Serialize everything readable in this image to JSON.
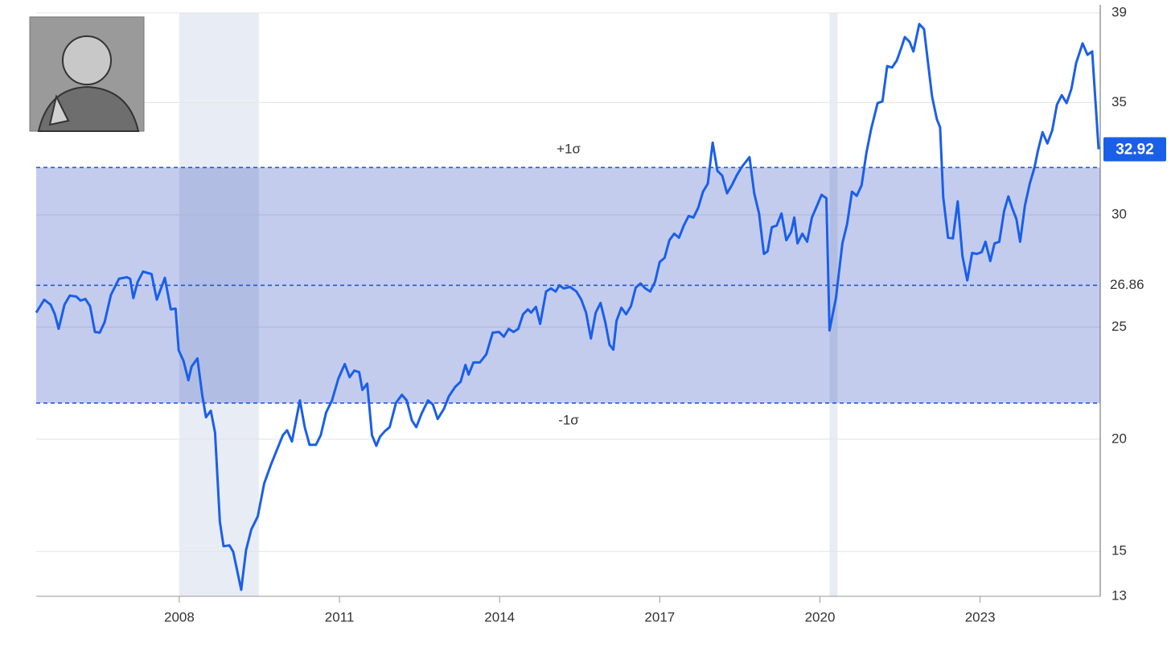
{
  "chart_data": {
    "type": "line",
    "x": [
      2005.32,
      2005.47,
      2005.59,
      2005.67,
      2005.74,
      2005.85,
      2005.95,
      2006.07,
      2006.15,
      2006.24,
      2006.33,
      2006.42,
      2006.51,
      2006.6,
      2006.72,
      2006.87,
      2007.02,
      2007.08,
      2007.14,
      2007.22,
      2007.32,
      2007.48,
      2007.58,
      2007.73,
      2007.84,
      2007.93,
      2007.99,
      2008.08,
      2008.17,
      2008.23,
      2008.34,
      2008.43,
      2008.5,
      2008.59,
      2008.67,
      2008.76,
      2008.83,
      2008.94,
      2009.01,
      2009.16,
      2009.25,
      2009.35,
      2009.47,
      2009.59,
      2009.71,
      2009.85,
      2009.94,
      2010.02,
      2010.11,
      2010.26,
      2010.35,
      2010.44,
      2010.56,
      2010.65,
      2010.75,
      2010.86,
      2010.98,
      2011.1,
      2011.19,
      2011.28,
      2011.37,
      2011.43,
      2011.52,
      2011.61,
      2011.69,
      2011.76,
      2011.85,
      2011.94,
      2012.06,
      2012.17,
      2012.26,
      2012.36,
      2012.44,
      2012.54,
      2012.66,
      2012.75,
      2012.84,
      2012.96,
      2013.05,
      2013.17,
      2013.27,
      2013.36,
      2013.42,
      2013.51,
      2013.63,
      2013.75,
      2013.87,
      2013.99,
      2014.08,
      2014.17,
      2014.26,
      2014.35,
      2014.44,
      2014.53,
      2014.59,
      2014.68,
      2014.76,
      2014.87,
      2014.96,
      2015.05,
      2015.12,
      2015.2,
      2015.32,
      2015.44,
      2015.53,
      2015.62,
      2015.71,
      2015.8,
      2015.89,
      2015.98,
      2016.06,
      2016.13,
      2016.19,
      2016.28,
      2016.37,
      2016.46,
      2016.55,
      2016.64,
      2016.73,
      2016.82,
      2016.91,
      2017.0,
      2017.09,
      2017.18,
      2017.27,
      2017.36,
      2017.45,
      2017.54,
      2017.63,
      2017.72,
      2017.81,
      2017.9,
      2017.99,
      2018.08,
      2018.17,
      2018.26,
      2018.35,
      2018.44,
      2018.53,
      2018.68,
      2018.77,
      2018.86,
      2018.95,
      2019.02,
      2019.1,
      2019.19,
      2019.28,
      2019.37,
      2019.46,
      2019.52,
      2019.58,
      2019.67,
      2019.76,
      2019.85,
      2019.94,
      2020.03,
      2020.12,
      2020.18,
      2020.3,
      2020.42,
      2020.51,
      2020.6,
      2020.69,
      2020.78,
      2020.87,
      2020.96,
      2021.08,
      2021.17,
      2021.26,
      2021.35,
      2021.44,
      2021.53,
      2021.59,
      2021.68,
      2021.75,
      2021.86,
      2021.95,
      2022.1,
      2022.19,
      2022.25,
      2022.31,
      2022.4,
      2022.49,
      2022.58,
      2022.67,
      2022.76,
      2022.85,
      2022.94,
      2023.03,
      2023.1,
      2023.19,
      2023.27,
      2023.36,
      2023.45,
      2023.53,
      2023.6,
      2023.68,
      2023.75,
      2023.84,
      2023.93,
      2024.02,
      2024.08,
      2024.17,
      2024.26,
      2024.35,
      2024.44,
      2024.53,
      2024.62,
      2024.71,
      2024.8,
      2024.92,
      2025.01,
      2025.1,
      2025.22
    ],
    "series": [
      {
        "color": "#1a5fe8",
        "values": [
          25.64,
          26.22,
          26.0,
          25.57,
          24.92,
          26.0,
          26.4,
          26.36,
          26.18,
          26.25,
          25.93,
          24.78,
          24.75,
          25.21,
          26.43,
          27.15,
          27.22,
          27.15,
          26.29,
          27.0,
          27.47,
          27.36,
          26.22,
          27.19,
          25.79,
          25.82,
          23.96,
          23.49,
          22.63,
          23.24,
          23.6,
          21.98,
          20.98,
          21.27,
          20.29,
          16.31,
          15.23,
          15.27,
          14.98,
          13.29,
          15.05,
          15.98,
          16.56,
          18.03,
          18.82,
          19.65,
          20.18,
          20.4,
          19.9,
          21.73,
          20.54,
          19.75,
          19.75,
          20.18,
          21.19,
          21.73,
          22.7,
          23.35,
          22.77,
          23.06,
          22.99,
          22.2,
          22.48,
          20.18,
          19.71,
          20.11,
          20.36,
          20.54,
          21.62,
          21.98,
          21.73,
          20.83,
          20.54,
          21.15,
          21.73,
          21.55,
          20.9,
          21.37,
          21.91,
          22.34,
          22.56,
          23.31,
          22.88,
          23.42,
          23.42,
          23.78,
          24.75,
          24.78,
          24.57,
          24.92,
          24.78,
          24.92,
          25.57,
          25.79,
          25.64,
          25.9,
          25.14,
          26.58,
          26.72,
          26.58,
          26.86,
          26.72,
          26.79,
          26.58,
          26.22,
          25.64,
          24.49,
          25.64,
          26.07,
          25.21,
          24.21,
          23.99,
          25.28,
          25.86,
          25.57,
          25.93,
          26.76,
          26.94,
          26.72,
          26.58,
          27.01,
          27.9,
          28.08,
          28.87,
          29.16,
          28.98,
          29.52,
          29.95,
          29.88,
          30.31,
          31.03,
          31.39,
          33.22,
          31.96,
          31.75,
          30.96,
          31.32,
          31.75,
          32.11,
          32.57,
          30.96,
          30.06,
          28.26,
          28.37,
          29.45,
          29.52,
          30.06,
          28.87,
          29.23,
          29.88,
          28.73,
          29.16,
          28.8,
          29.88,
          30.38,
          30.89,
          30.74,
          24.85,
          26.29,
          28.73,
          29.59,
          31.03,
          30.85,
          31.32,
          32.75,
          33.83,
          34.98,
          35.05,
          36.63,
          36.56,
          36.88,
          37.49,
          37.92,
          37.71,
          37.28,
          38.5,
          38.28,
          35.27,
          34.26,
          33.9,
          30.78,
          28.98,
          28.95,
          30.6,
          28.16,
          27.08,
          28.3,
          28.26,
          28.34,
          28.8,
          27.94,
          28.73,
          28.8,
          30.17,
          30.82,
          30.31,
          29.81,
          28.8,
          30.42,
          31.39,
          32.11,
          32.82,
          33.68,
          33.18,
          33.76,
          34.91,
          35.33,
          34.98,
          35.62,
          36.77,
          37.64,
          37.13,
          37.28,
          32.92
        ]
      }
    ],
    "xlim": [
      2005.32,
      2025.25
    ],
    "xticks": [
      2008,
      2011,
      2014,
      2017,
      2020,
      2023
    ],
    "ylim": [
      13,
      39
    ],
    "yticks": [
      13,
      15,
      20,
      25,
      30,
      35,
      39
    ],
    "grid": true,
    "band": {
      "mean": 26.86,
      "upper": 32.11,
      "lower": 21.61,
      "upper_label": "+1σ",
      "lower_label": "-1σ",
      "color": "#b9c3ea"
    },
    "shaded_ranges": [
      [
        2008.0,
        2009.49
      ],
      [
        2020.18,
        2020.33
      ]
    ],
    "shaded_color": "#e8ecf4"
  }
}
